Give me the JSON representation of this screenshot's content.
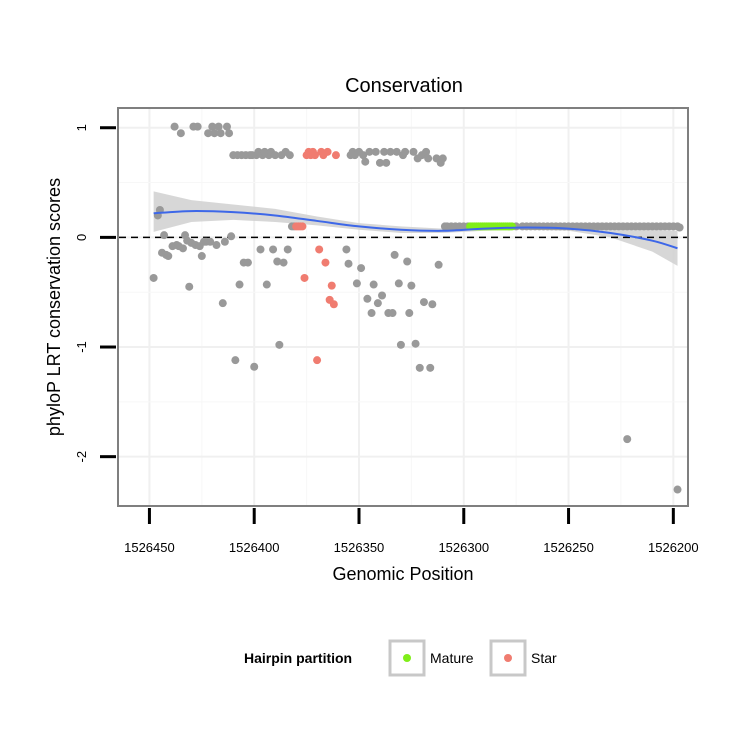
{
  "chart_data": {
    "type": "scatter",
    "title": "Conservation",
    "xlabel": "Genomic Position",
    "ylabel": "phyloP LRT conservation scores",
    "x_reversed": true,
    "xlim": [
      1526465,
      1526193
    ],
    "ylim": [
      -2.45,
      1.18
    ],
    "x_ticks": [
      1526450,
      1526400,
      1526350,
      1526300,
      1526250,
      1526200
    ],
    "x_tick_labels": [
      "1526450",
      "1526400",
      "1526350",
      "1526300",
      "1526250",
      "1526200"
    ],
    "y_ticks": [
      1,
      0,
      -1,
      -2
    ],
    "y_tick_labels": [
      "1",
      "0",
      "-1",
      "-2"
    ],
    "reference_line": {
      "y": 0,
      "style": "dashed"
    },
    "legend": {
      "title": "Hairpin partition",
      "position": "bottom",
      "entries": [
        {
          "label": "Mature",
          "color": "#80ee19"
        },
        {
          "label": "Star",
          "color": "#f07c70"
        }
      ]
    },
    "colors": {
      "Other": "#999999",
      "Mature": "#80ee19",
      "Star": "#f07c70",
      "smooth": "#3d67e8",
      "band": "#d0d0d0"
    },
    "series": [
      {
        "name": "Other",
        "points": [
          [
            1526448,
            -0.37
          ],
          [
            1526446,
            0.2
          ],
          [
            1526445,
            0.25
          ],
          [
            1526444,
            -0.14
          ],
          [
            1526443,
            0.02
          ],
          [
            1526442,
            -0.16
          ],
          [
            1526441,
            -0.17
          ],
          [
            1526439,
            -0.08
          ],
          [
            1526438,
            1.01
          ],
          [
            1526437,
            -0.07
          ],
          [
            1526436,
            -0.08
          ],
          [
            1526435,
            0.95
          ],
          [
            1526434,
            -0.1
          ],
          [
            1526433,
            0.02
          ],
          [
            1526432,
            -0.03
          ],
          [
            1526431,
            -0.45
          ],
          [
            1526430,
            -0.05
          ],
          [
            1526429,
            1.01
          ],
          [
            1526428,
            -0.07
          ],
          [
            1526427,
            1.01
          ],
          [
            1526426,
            -0.08
          ],
          [
            1526425,
            -0.17
          ],
          [
            1526424,
            -0.04
          ],
          [
            1526423,
            -0.04
          ],
          [
            1526422,
            0.95
          ],
          [
            1526421,
            -0.04
          ],
          [
            1526420,
            1.01
          ],
          [
            1526419,
            0.95
          ],
          [
            1526418,
            -0.07
          ],
          [
            1526417,
            1.01
          ],
          [
            1526416,
            0.95
          ],
          [
            1526415,
            -0.6
          ],
          [
            1526414,
            -0.04
          ],
          [
            1526413,
            1.01
          ],
          [
            1526412,
            0.95
          ],
          [
            1526411,
            0.01
          ],
          [
            1526410,
            0.75
          ],
          [
            1526409,
            -1.12
          ],
          [
            1526408,
            0.75
          ],
          [
            1526407,
            -0.43
          ],
          [
            1526406,
            0.75
          ],
          [
            1526405,
            -0.23
          ],
          [
            1526404,
            0.75
          ],
          [
            1526403,
            -0.23
          ],
          [
            1526402,
            0.75
          ],
          [
            1526401,
            0.75
          ],
          [
            1526400,
            -1.18
          ],
          [
            1526399,
            0.75
          ],
          [
            1526398,
            0.78
          ],
          [
            1526397,
            -0.11
          ],
          [
            1526396,
            0.75
          ],
          [
            1526395,
            0.78
          ],
          [
            1526394,
            -0.43
          ],
          [
            1526393,
            0.75
          ],
          [
            1526392,
            0.78
          ],
          [
            1526391,
            -0.11
          ],
          [
            1526390,
            0.75
          ],
          [
            1526389,
            -0.22
          ],
          [
            1526388,
            -0.98
          ],
          [
            1526387,
            0.75
          ],
          [
            1526386,
            -0.23
          ],
          [
            1526385,
            0.78
          ],
          [
            1526384,
            -0.11
          ],
          [
            1526383,
            0.75
          ],
          [
            1526382,
            0.1
          ],
          [
            1526381,
            0.1
          ],
          [
            1526356,
            -0.11
          ],
          [
            1526355,
            -0.24
          ],
          [
            1526354,
            0.75
          ],
          [
            1526353,
            0.78
          ],
          [
            1526352,
            0.75
          ],
          [
            1526351,
            -0.42
          ],
          [
            1526350,
            0.78
          ],
          [
            1526349,
            -0.28
          ],
          [
            1526348,
            0.75
          ],
          [
            1526347,
            0.69
          ],
          [
            1526346,
            -0.56
          ],
          [
            1526345,
            0.78
          ],
          [
            1526344,
            -0.69
          ],
          [
            1526343,
            -0.43
          ],
          [
            1526342,
            0.78
          ],
          [
            1526341,
            -0.6
          ],
          [
            1526340,
            0.68
          ],
          [
            1526339,
            -0.53
          ],
          [
            1526338,
            0.78
          ],
          [
            1526337,
            0.68
          ],
          [
            1526336,
            -0.69
          ],
          [
            1526335,
            0.78
          ],
          [
            1526334,
            -0.69
          ],
          [
            1526333,
            -0.16
          ],
          [
            1526332,
            0.78
          ],
          [
            1526331,
            -0.42
          ],
          [
            1526330,
            -0.98
          ],
          [
            1526329,
            0.75
          ],
          [
            1526328,
            0.78
          ],
          [
            1526327,
            -0.22
          ],
          [
            1526326,
            -0.69
          ],
          [
            1526325,
            -0.44
          ],
          [
            1526324,
            0.78
          ],
          [
            1526323,
            -0.97
          ],
          [
            1526322,
            0.72
          ],
          [
            1526321,
            -1.19
          ],
          [
            1526320,
            0.75
          ],
          [
            1526319,
            -0.59
          ],
          [
            1526318,
            0.78
          ],
          [
            1526317,
            0.72
          ],
          [
            1526316,
            -1.19
          ],
          [
            1526315,
            -0.61
          ],
          [
            1526313,
            0.72
          ],
          [
            1526312,
            -0.25
          ],
          [
            1526311,
            0.68
          ],
          [
            1526310,
            0.72
          ],
          [
            1526309,
            0.1
          ],
          [
            1526308,
            0.1
          ],
          [
            1526306,
            0.1
          ],
          [
            1526304,
            0.1
          ],
          [
            1526302,
            0.1
          ],
          [
            1526300,
            0.1
          ],
          [
            1526298,
            0.1
          ],
          [
            1526275,
            0.1
          ],
          [
            1526272,
            0.1
          ],
          [
            1526270,
            0.1
          ],
          [
            1526268,
            0.1
          ],
          [
            1526266,
            0.1
          ],
          [
            1526264,
            0.1
          ],
          [
            1526262,
            0.1
          ],
          [
            1526260,
            0.1
          ],
          [
            1526258,
            0.1
          ],
          [
            1526256,
            0.1
          ],
          [
            1526254,
            0.1
          ],
          [
            1526252,
            0.1
          ],
          [
            1526250,
            0.1
          ],
          [
            1526248,
            0.1
          ],
          [
            1526246,
            0.1
          ],
          [
            1526244,
            0.1
          ],
          [
            1526242,
            0.1
          ],
          [
            1526240,
            0.1
          ],
          [
            1526238,
            0.1
          ],
          [
            1526236,
            0.1
          ],
          [
            1526234,
            0.1
          ],
          [
            1526232,
            0.1
          ],
          [
            1526230,
            0.1
          ],
          [
            1526228,
            0.1
          ],
          [
            1526226,
            0.1
          ],
          [
            1526224,
            0.1
          ],
          [
            1526222,
            0.1
          ],
          [
            1526220,
            0.1
          ],
          [
            1526218,
            0.1
          ],
          [
            1526216,
            0.1
          ],
          [
            1526214,
            0.1
          ],
          [
            1526212,
            0.1
          ],
          [
            1526210,
            0.1
          ],
          [
            1526208,
            0.1
          ],
          [
            1526206,
            0.1
          ],
          [
            1526204,
            0.1
          ],
          [
            1526202,
            0.1
          ],
          [
            1526200,
            0.1
          ],
          [
            1526198,
            0.1
          ],
          [
            1526197,
            0.09
          ],
          [
            1526222,
            -1.84
          ],
          [
            1526198,
            -2.3
          ]
        ]
      },
      {
        "name": "Star",
        "points": [
          [
            1526380,
            0.1
          ],
          [
            1526379,
            0.1
          ],
          [
            1526378,
            0.1
          ],
          [
            1526377,
            0.1
          ],
          [
            1526376,
            -0.37
          ],
          [
            1526375,
            0.75
          ],
          [
            1526374,
            0.78
          ],
          [
            1526373,
            0.75
          ],
          [
            1526372,
            0.78
          ],
          [
            1526371,
            0.75
          ],
          [
            1526370,
            -1.12
          ],
          [
            1526369,
            -0.11
          ],
          [
            1526368,
            0.78
          ],
          [
            1526367,
            0.75
          ],
          [
            1526366,
            -0.23
          ],
          [
            1526365,
            0.78
          ],
          [
            1526364,
            -0.57
          ],
          [
            1526363,
            -0.44
          ],
          [
            1526362,
            -0.61
          ],
          [
            1526361,
            0.75
          ]
        ]
      },
      {
        "name": "Mature",
        "points": [
          [
            1526297,
            0.1
          ],
          [
            1526296,
            0.1
          ],
          [
            1526295,
            0.1
          ],
          [
            1526294,
            0.1
          ],
          [
            1526293,
            0.1
          ],
          [
            1526292,
            0.1
          ],
          [
            1526291,
            0.1
          ],
          [
            1526290,
            0.1
          ],
          [
            1526289,
            0.1
          ],
          [
            1526288,
            0.1
          ],
          [
            1526287,
            0.1
          ],
          [
            1526286,
            0.1
          ],
          [
            1526285,
            0.1
          ],
          [
            1526284,
            0.1
          ],
          [
            1526283,
            0.1
          ],
          [
            1526282,
            0.1
          ],
          [
            1526281,
            0.1
          ],
          [
            1526280,
            0.1
          ],
          [
            1526279,
            0.1
          ],
          [
            1526278,
            0.1
          ],
          [
            1526277,
            0.1
          ]
        ]
      }
    ],
    "smooth": {
      "x": [
        1526448,
        1526430,
        1526410,
        1526390,
        1526370,
        1526350,
        1526330,
        1526310,
        1526290,
        1526270,
        1526250,
        1526230,
        1526210,
        1526198
      ],
      "y": [
        0.22,
        0.24,
        0.23,
        0.2,
        0.15,
        0.1,
        0.07,
        0.06,
        0.08,
        0.09,
        0.08,
        0.04,
        -0.03,
        -0.1
      ],
      "lower": [
        0.05,
        0.14,
        0.16,
        0.14,
        0.11,
        0.07,
        0.04,
        0.04,
        0.06,
        0.07,
        0.06,
        0.0,
        -0.13,
        -0.26
      ],
      "upper": [
        0.42,
        0.34,
        0.3,
        0.26,
        0.19,
        0.13,
        0.1,
        0.08,
        0.1,
        0.11,
        0.1,
        0.08,
        0.07,
        0.06
      ]
    }
  }
}
